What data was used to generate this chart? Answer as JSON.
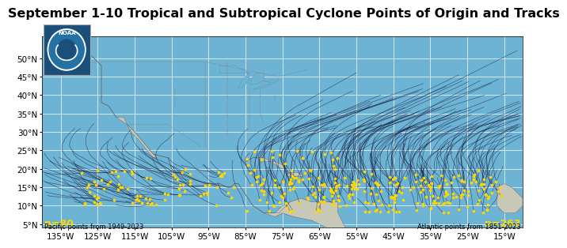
{
  "title": "September 1-10 Tropical and Subtropical Cyclone Points of Origin and Tracks",
  "title_fontsize": 11.5,
  "lon_min": -140,
  "lon_max": -10,
  "lat_min": 4,
  "lat_max": 56,
  "ocean_color": "#6db3d4",
  "land_color": "#c8c8b8",
  "grid_color": "#ffffff",
  "track_color": "#111133",
  "point_color": "#FFD700",
  "xlabel_lons": [
    -135,
    -125,
    -115,
    -105,
    -95,
    -85,
    -75,
    -65,
    -55,
    -45,
    -35,
    -25,
    -15
  ],
  "ylabel_lats": [
    5,
    10,
    15,
    20,
    25,
    30,
    35,
    40,
    45,
    50
  ],
  "n_pacific": "n=80",
  "n_atlantic": "n=263",
  "pacific_label": "Pacific points from 1949-2023",
  "atlantic_label": "Atlantic points from 1851-2023",
  "label_color": "#FFD700",
  "tick_fontsize": 7.5,
  "fig_bg": "#ffffff"
}
